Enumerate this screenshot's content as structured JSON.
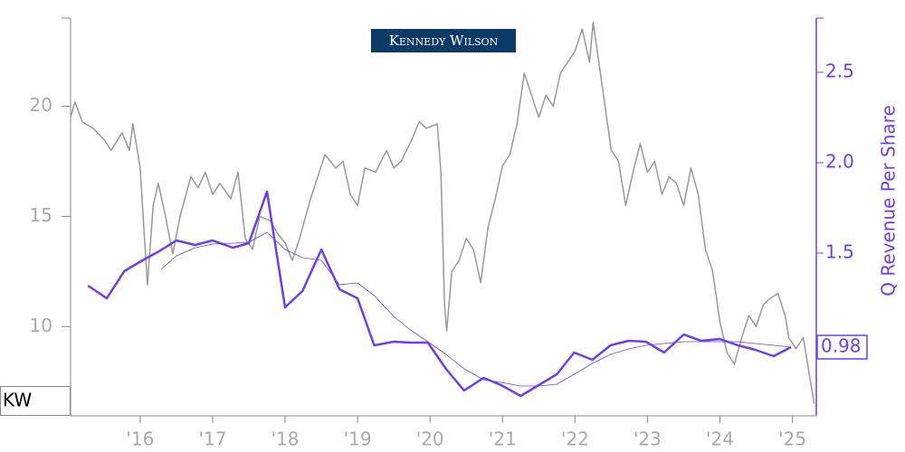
{
  "chart_data": {
    "type": "line",
    "logo": "Kennedy Wilson",
    "ticker": "KW",
    "y2_label": "Q Revenue Per Share",
    "xlim": [
      2015.04,
      2025.33
    ],
    "xticks": [
      {
        "value": 2016,
        "label": "'16"
      },
      {
        "value": 2017,
        "label": "'17"
      },
      {
        "value": 2018,
        "label": "'18"
      },
      {
        "value": 2019,
        "label": "'19"
      },
      {
        "value": 2020,
        "label": "'20"
      },
      {
        "value": 2021,
        "label": "'21"
      },
      {
        "value": 2022,
        "label": "'22"
      },
      {
        "value": 2023,
        "label": "'23"
      },
      {
        "value": 2024,
        "label": "'24"
      },
      {
        "value": 2025,
        "label": "'25"
      }
    ],
    "ylim": [
      5.95,
      24
    ],
    "yticks": [
      10,
      15,
      20
    ],
    "y2lim": [
      0.6,
      2.8
    ],
    "y2ticks": [
      1.5,
      {
        "value": 2,
        "label": "2.0"
      },
      2.5
    ],
    "series": [
      {
        "color": "#999999",
        "axis": "y",
        "x": [
          2015.04,
          2015.1,
          2015.2,
          2015.35,
          2015.5,
          2015.6,
          2015.75,
          2015.85,
          2015.9,
          2016.0,
          2016.05,
          2016.1,
          2016.18,
          2016.25,
          2016.35,
          2016.45,
          2016.55,
          2016.7,
          2016.8,
          2016.9,
          2017.0,
          2017.1,
          2017.25,
          2017.35,
          2017.45,
          2017.55,
          2017.65,
          2017.8,
          2017.9,
          2018.0,
          2018.1,
          2018.2,
          2018.35,
          2018.45,
          2018.55,
          2018.7,
          2018.8,
          2018.9,
          2019.0,
          2019.1,
          2019.25,
          2019.4,
          2019.5,
          2019.6,
          2019.75,
          2019.85,
          2019.95,
          2020.1,
          2020.15,
          2020.2,
          2020.23,
          2020.3,
          2020.4,
          2020.5,
          2020.6,
          2020.7,
          2020.8,
          2020.9,
          2021.0,
          2021.1,
          2021.2,
          2021.3,
          2021.4,
          2021.5,
          2021.6,
          2021.7,
          2021.8,
          2021.9,
          2022.0,
          2022.1,
          2022.2,
          2022.25,
          2022.35,
          2022.5,
          2022.6,
          2022.7,
          2022.8,
          2022.9,
          2023.0,
          2023.1,
          2023.2,
          2023.3,
          2023.4,
          2023.5,
          2023.6,
          2023.7,
          2023.8,
          2023.9,
          2024.0,
          2024.1,
          2024.2,
          2024.3,
          2024.4,
          2024.5,
          2024.6,
          2024.7,
          2024.8,
          2024.9,
          2024.95,
          2025.05,
          2025.15,
          2025.25,
          2025.3
        ],
        "values": [
          19.5,
          20.2,
          19.3,
          19.0,
          18.5,
          18.0,
          18.8,
          18.0,
          19.2,
          17.2,
          14.5,
          11.9,
          15.5,
          16.5,
          15.0,
          13.3,
          15.0,
          16.8,
          16.3,
          17.0,
          16.0,
          16.5,
          15.8,
          17.0,
          14.0,
          13.5,
          15.0,
          14.8,
          14.2,
          13.8,
          13.0,
          14.0,
          15.8,
          16.8,
          17.8,
          17.2,
          17.5,
          16.0,
          15.5,
          17.2,
          17.0,
          18.0,
          17.2,
          17.5,
          18.5,
          19.3,
          19.0,
          19.2,
          17.0,
          11.0,
          9.8,
          12.5,
          13.0,
          14.0,
          13.5,
          12.0,
          14.5,
          15.8,
          17.3,
          17.8,
          19.2,
          21.5,
          20.5,
          19.5,
          20.5,
          20.0,
          21.5,
          22.0,
          22.5,
          23.5,
          22.0,
          23.8,
          21.5,
          18.0,
          17.5,
          15.5,
          17.0,
          18.3,
          17.0,
          17.5,
          16.0,
          16.8,
          16.5,
          15.5,
          17.2,
          16.0,
          13.5,
          12.5,
          10.2,
          8.8,
          8.3,
          9.5,
          10.5,
          10.0,
          11.0,
          11.3,
          11.5,
          10.5,
          9.5,
          9.0,
          9.5,
          7.5,
          6.5
        ]
      },
      {
        "color": "#6b3ff0",
        "axis": "y2",
        "x": [
          2016.29,
          2016.5,
          2016.76,
          2017.0,
          2017.28,
          2017.5,
          2017.75,
          2018.0,
          2018.24,
          2018.5,
          2018.75,
          2019.0,
          2019.23,
          2019.5,
          2019.73,
          2019.97,
          2020.22,
          2020.47,
          2020.74,
          2020.98,
          2021.25,
          2021.5,
          2021.75,
          2021.99,
          2022.24,
          2022.49,
          2022.74,
          2022.98,
          2023.23,
          2023.5,
          2023.74,
          2024.0,
          2024.25,
          2024.49,
          2024.74,
          2024.98
        ],
        "values": [
          1.41,
          1.485,
          1.53,
          1.55,
          1.555,
          1.56,
          1.615,
          1.52,
          1.475,
          1.46,
          1.325,
          1.335,
          1.265,
          1.15,
          1.075,
          1.01,
          0.94,
          0.86,
          0.8,
          0.785,
          0.765,
          0.765,
          0.775,
          0.83,
          0.89,
          0.94,
          0.97,
          0.99,
          1.0,
          1.01,
          1.01,
          1.01,
          1.01,
          1.0,
          0.99,
          0.98
        ]
      },
      {
        "color": "#6b3ff0",
        "axis": "y2",
        "x": [
          2015.28,
          2015.54,
          2015.78,
          2016.01,
          2016.26,
          2016.5,
          2016.76,
          2017.0,
          2017.28,
          2017.5,
          2017.75,
          2018.0,
          2018.24,
          2018.5,
          2018.75,
          2019.0,
          2019.23,
          2019.5,
          2019.73,
          2019.97,
          2020.22,
          2020.47,
          2020.74,
          2020.98,
          2021.25,
          2021.5,
          2021.75,
          2021.99,
          2022.24,
          2022.49,
          2022.74,
          2022.98,
          2023.23,
          2023.5,
          2023.74,
          2024.0,
          2024.25,
          2024.49,
          2024.74,
          2024.98
        ],
        "values": [
          1.32,
          1.25,
          1.4,
          1.455,
          1.51,
          1.57,
          1.545,
          1.57,
          1.53,
          1.555,
          1.84,
          1.2,
          1.29,
          1.52,
          1.3,
          1.25,
          0.99,
          1.01,
          1.005,
          1.005,
          0.86,
          0.74,
          0.81,
          0.77,
          0.71,
          0.77,
          0.83,
          0.95,
          0.91,
          0.99,
          1.015,
          1.01,
          0.95,
          1.05,
          1.015,
          1.025,
          0.99,
          0.965,
          0.93,
          0.98
        ]
      }
    ],
    "annotations": [
      {
        "y": 0.98,
        "label": "0.98"
      }
    ]
  }
}
